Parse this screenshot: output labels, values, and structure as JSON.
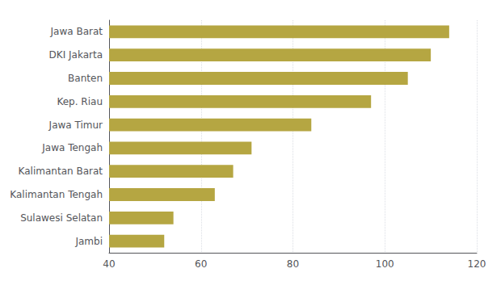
{
  "chart_data": {
    "type": "bar",
    "orientation": "horizontal",
    "categories": [
      "Jambi",
      "Sulawesi Selatan",
      "Kalimantan Tengah",
      "Kalimantan Barat",
      "Jawa Tengah",
      "Jawa Timur",
      "Kep. Riau",
      "Banten",
      "DKI Jakarta",
      "Jawa Barat"
    ],
    "values": [
      52,
      54,
      63,
      67,
      71,
      84,
      97,
      105,
      110,
      114
    ],
    "color": "#b5a642",
    "xlim": [
      40,
      120
    ],
    "xticks": [
      40,
      60,
      80,
      100,
      120
    ],
    "grid": true
  }
}
